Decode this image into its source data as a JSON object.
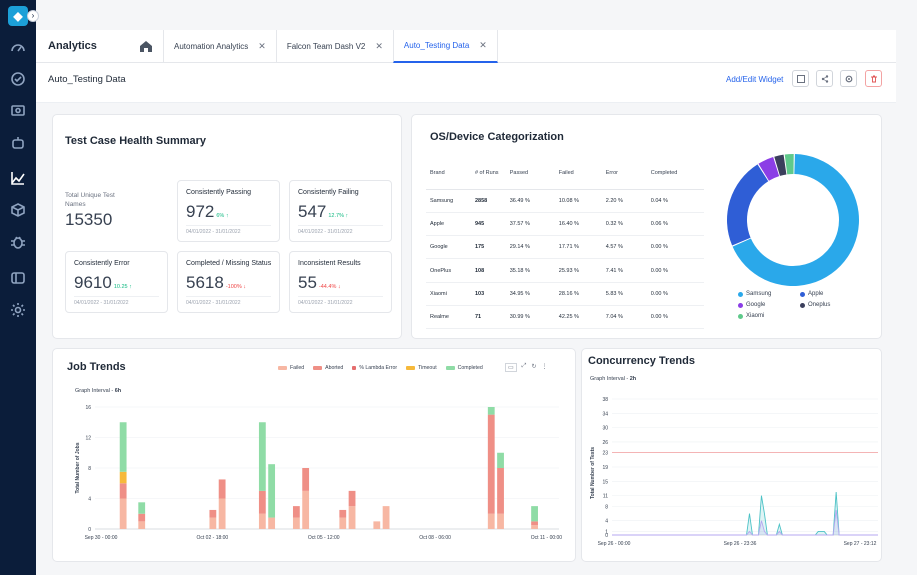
{
  "app": {
    "title": "Analytics",
    "collapse_glyph": "›",
    "logo_glyph": "◆"
  },
  "sidebar": {
    "icons": [
      "speedometer-icon",
      "dashboard-icon",
      "monitor-icon",
      "robot-icon",
      "analytics-icon",
      "cube-icon",
      "bug-icon",
      "reports-icon",
      "settings-icon"
    ]
  },
  "tabs": [
    {
      "label": "Automation Analytics"
    },
    {
      "label": "Falcon Team Dash V2"
    },
    {
      "label": "Auto_Testing Data"
    }
  ],
  "tab_close": "✕",
  "dashboard": {
    "name": "Auto_Testing Data",
    "add_widget_label": "Add/Edit Widget"
  },
  "health": {
    "title": "Test Case Health Summary",
    "total_label": "Total Unique Test Names",
    "total_value": "15350",
    "metrics": [
      {
        "label": "Consistently Passing",
        "value": "972",
        "delta": "6% ↑",
        "trend": "up",
        "range": "04/01/2022 - 31/01/2022"
      },
      {
        "label": "Consistently Failing",
        "value": "547",
        "delta": "12.7% ↑",
        "trend": "up",
        "range": "04/01/2022 - 31/01/2022"
      },
      {
        "label": "Consistently Error",
        "value": "9610",
        "delta": "10.25 ↑",
        "trend": "up",
        "range": "04/01/2022 - 31/01/2022"
      },
      {
        "label": "Completed / Missing Status",
        "value": "5618",
        "delta": "-100% ↓",
        "trend": "down",
        "range": "04/01/2022 - 31/01/2022"
      },
      {
        "label": "Inconsistent Results",
        "value": "55",
        "delta": "-44.4% ↓",
        "trend": "down",
        "range": "04/01/2022 - 31/01/2022"
      }
    ]
  },
  "os": {
    "title": "OS/Device Categorization",
    "headers": [
      "Brand",
      "# of Runs",
      "Passed",
      "Failed",
      "Error",
      "Completed"
    ],
    "rows": [
      [
        "Samsung",
        "2858",
        "36.49 %",
        "10.08 %",
        "2.20 %",
        "0.04 %"
      ],
      [
        "Apple",
        "945",
        "37.57 %",
        "16.40 %",
        "0.32 %",
        "0.06 %"
      ],
      [
        "Google",
        "175",
        "29.14 %",
        "17.71 %",
        "4.57 %",
        "0.00 %"
      ],
      [
        "OnePlus",
        "108",
        "35.18 %",
        "25.93 %",
        "7.41 %",
        "0.00 %"
      ],
      [
        "Xiaomi",
        "103",
        "34.95 %",
        "28.16 %",
        "5.83 %",
        "0.00 %"
      ],
      [
        "Realme",
        "71",
        "30.99 %",
        "42.25 %",
        "7.04 %",
        "0.00 %"
      ]
    ]
  },
  "colors": {
    "passed": "#10b981",
    "failed_text": "#ef4444",
    "donut": [
      "#2aa8ea",
      "#2f5ed6",
      "#8b3ee6",
      "#3b3f5c",
      "#5fc98b"
    ],
    "jt_failed": "#f7b7a3",
    "jt_aborted": "#ef8f86",
    "jt_lambda": "#e56e6e",
    "jt_timeout": "#f6b93b",
    "jt_completed": "#8fdca6",
    "ct_line": "#4cc2c6",
    "ct_line2": "#b6a7f0",
    "ct_ref": "#f08a8a"
  },
  "chart_data": [
    {
      "type": "pie",
      "categories": [
        "Samsung",
        "Apple",
        "Google",
        "Oneplus",
        "Xiaomi"
      ],
      "values": [
        2858,
        945,
        175,
        108,
        103
      ],
      "legend": "bottom"
    },
    {
      "type": "bar",
      "title": "Job Trends",
      "subtitle_label": "Graph Interval - ",
      "subtitle_value": "6h",
      "ylabel": "Total Number of Jobs",
      "ylim": [
        0,
        16
      ],
      "yticks": [
        0,
        4,
        8,
        12,
        16
      ],
      "tick_labels": [
        "Sep 30 - 00:00",
        "Oct 02 - 18:00",
        "Oct 05 - 12:00",
        "Oct 08 - 06:00",
        "Oct 11 - 00:00"
      ],
      "legend_labels": [
        "Failed",
        "Aborted",
        "% Lambda Error",
        "Timeout",
        "Completed"
      ],
      "stacked": true,
      "bars": [
        {
          "idx": 8,
          "failed": 4,
          "aborted": 2,
          "timeout": 1.5,
          "completed": 6.5
        },
        {
          "idx": 14,
          "failed": 1,
          "aborted": 1,
          "timeout": 0,
          "completed": 1.5
        },
        {
          "idx": 37,
          "failed": 1.5,
          "aborted": 1,
          "timeout": 0,
          "completed": 0
        },
        {
          "idx": 40,
          "failed": 4,
          "aborted": 2.5,
          "timeout": 0,
          "completed": 0
        },
        {
          "idx": 53,
          "failed": 2,
          "aborted": 3,
          "timeout": 0,
          "completed": 9
        },
        {
          "idx": 56,
          "failed": 1.5,
          "aborted": 0,
          "timeout": 0,
          "completed": 7
        },
        {
          "idx": 64,
          "failed": 1.5,
          "aborted": 1.5,
          "timeout": 0,
          "completed": 0
        },
        {
          "idx": 67,
          "failed": 5,
          "aborted": 3,
          "timeout": 0,
          "completed": 0
        },
        {
          "idx": 79,
          "failed": 1.5,
          "aborted": 1,
          "timeout": 0,
          "completed": 0
        },
        {
          "idx": 82,
          "failed": 3,
          "aborted": 2,
          "timeout": 0,
          "completed": 0
        },
        {
          "idx": 90,
          "failed": 1,
          "aborted": 0,
          "timeout": 0,
          "completed": 0
        },
        {
          "idx": 93,
          "failed": 3,
          "aborted": 0,
          "timeout": 0,
          "completed": 0
        },
        {
          "idx": 127,
          "failed": 2,
          "aborted": 13,
          "timeout": 0,
          "completed": 1
        },
        {
          "idx": 130,
          "failed": 2,
          "aborted": 6,
          "timeout": 0,
          "completed": 2
        },
        {
          "idx": 141,
          "failed": 0.5,
          "aborted": 0.5,
          "timeout": 0,
          "completed": 2
        }
      ]
    },
    {
      "type": "line",
      "title": "Concurrency Trends",
      "subtitle_label": "Graph Interval - ",
      "subtitle_value": "2h",
      "ylabel": "Total Number of Tests",
      "ylim": [
        0,
        38
      ],
      "yticks": [
        0,
        1,
        4,
        8,
        11,
        15,
        19,
        23,
        26,
        30,
        34,
        38
      ],
      "tick_labels": [
        "Sep 26 - 00:00",
        "Sep 26 - 23:36",
        "Sep 27 - 23:12"
      ],
      "reference_line": 23,
      "series": [
        {
          "values": [
            0,
            0,
            0,
            0,
            0,
            0,
            0,
            0,
            0,
            0,
            0,
            0,
            0,
            0,
            0,
            0,
            0,
            0,
            0,
            0,
            0,
            0,
            0,
            0,
            0,
            0,
            0,
            0,
            0,
            0,
            0,
            0,
            0,
            0,
            0,
            0,
            0,
            0,
            0,
            0,
            0,
            0,
            0,
            0,
            0,
            0,
            6,
            0,
            0,
            0,
            11,
            6,
            0,
            0,
            0,
            0,
            3,
            0,
            0,
            0,
            0,
            0,
            0,
            0,
            0,
            0,
            0,
            0,
            0,
            1,
            1,
            1,
            0,
            0,
            0,
            12,
            0,
            0,
            0,
            0,
            0,
            0,
            0,
            0,
            0,
            0,
            0,
            0,
            0,
            0
          ]
        },
        {
          "values": [
            0,
            0,
            0,
            0,
            0,
            0,
            0,
            0,
            0,
            0,
            0,
            0,
            0,
            0,
            0,
            0,
            0,
            0,
            0,
            0,
            0,
            0,
            0,
            0,
            0,
            0,
            0,
            0,
            0,
            0,
            0,
            0,
            0,
            0,
            0,
            0,
            0,
            0,
            0,
            0,
            0,
            0,
            0,
            0,
            0,
            0,
            1,
            0,
            0,
            0,
            4,
            1,
            0,
            0,
            0,
            0,
            1,
            0,
            0,
            0,
            0,
            0,
            0,
            0,
            0,
            0,
            0,
            0,
            0,
            0,
            0,
            0,
            0,
            0,
            0,
            7,
            0,
            0,
            0,
            0,
            0,
            0,
            0,
            0,
            0,
            0,
            0,
            0,
            0,
            0
          ]
        }
      ]
    }
  ]
}
